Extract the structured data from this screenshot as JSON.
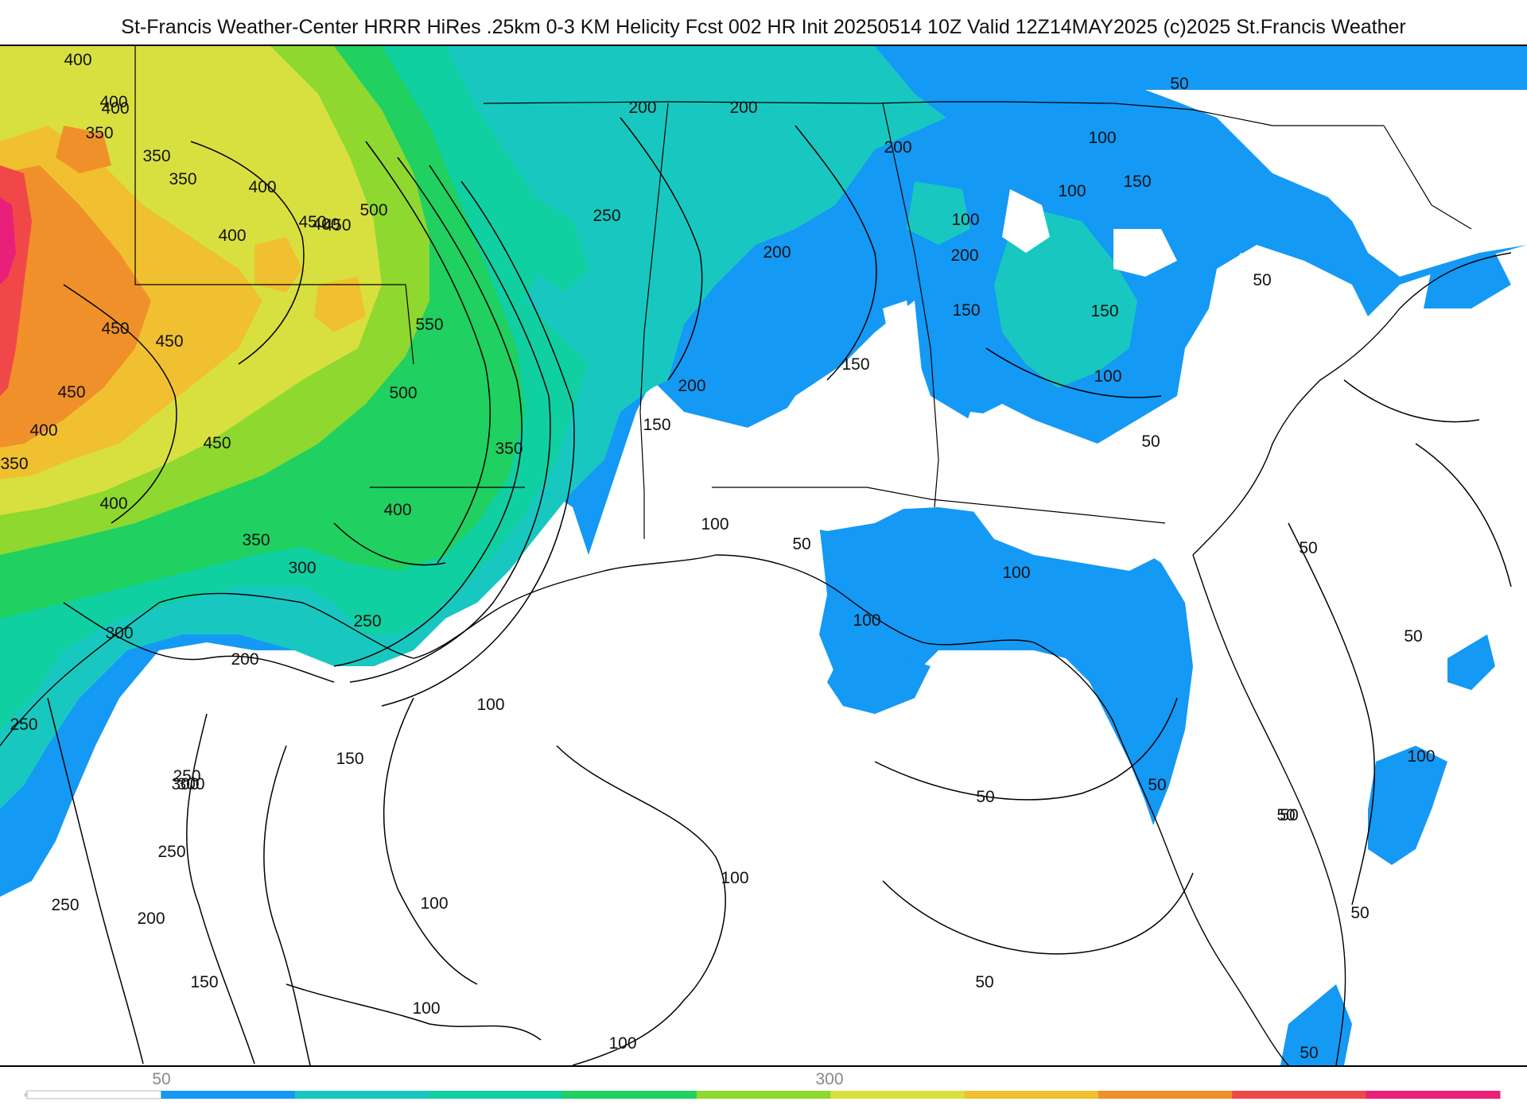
{
  "header": {
    "title": "St-Francis Weather-Center HRRR HiRes .25km 0-3 KM Helicity Fcst 002 HR Init 20250514 10Z  Valid 12Z14MAY2025    (c)2025 St.Francis Weather"
  },
  "colors": {
    "water": "#ffffff",
    "band_100": "#1499f5",
    "band_150": "#2ab8f0",
    "band_200": "#18c8c0",
    "band_250": "#10cfa0",
    "band_300": "#20d060",
    "band_350": "#30cc20",
    "band_400": "#8ed830",
    "band_450": "#d8e040",
    "band_500": "#f0c030",
    "band_550": "#f0902a",
    "band_600": "#f04848",
    "band_650": "#e8207a"
  },
  "legend": {
    "tick_labels": [
      "50",
      "300"
    ],
    "segments": [
      "#ffffff",
      "#1499f5",
      "#18c8c0",
      "#10cfa0",
      "#20d060",
      "#8ed830",
      "#d8e040",
      "#f0c030",
      "#f0902a",
      "#f04848",
      "#e8207a"
    ]
  },
  "contour_labels": [
    {
      "text": "400",
      "name": "west"
    },
    {
      "text": "400",
      "name": "west"
    },
    {
      "text": "350",
      "name": "west"
    },
    {
      "text": "400",
      "name": "west"
    },
    {
      "text": "350",
      "name": "west"
    },
    {
      "text": "350",
      "name": "west"
    },
    {
      "text": "400",
      "name": "west"
    },
    {
      "text": "450",
      "name": "west"
    },
    {
      "text": "500",
      "name": "west"
    },
    {
      "text": "400",
      "name": "west"
    },
    {
      "text": "400",
      "name": "west"
    },
    {
      "text": "550",
      "name": "west"
    },
    {
      "text": "450",
      "name": "west"
    },
    {
      "text": "450",
      "name": "west"
    },
    {
      "text": "500",
      "name": "west"
    },
    {
      "text": "450",
      "name": "west"
    },
    {
      "text": "400",
      "name": "west"
    },
    {
      "text": "450",
      "name": "west"
    },
    {
      "text": "350",
      "name": "west"
    },
    {
      "text": "450",
      "name": "west"
    },
    {
      "text": "400",
      "name": "west"
    },
    {
      "text": "400",
      "name": "west"
    },
    {
      "text": "350",
      "name": "west"
    },
    {
      "text": "300",
      "name": "west"
    },
    {
      "text": "350",
      "name": "west"
    },
    {
      "text": "250",
      "name": "west"
    },
    {
      "text": "300",
      "name": "west"
    },
    {
      "text": "250",
      "name": "west"
    },
    {
      "text": "200",
      "name": "west"
    },
    {
      "text": "250",
      "name": "west"
    },
    {
      "text": "300",
      "name": "west"
    },
    {
      "text": "200",
      "name": "central"
    },
    {
      "text": "250",
      "name": "central"
    },
    {
      "text": "200",
      "name": "central"
    },
    {
      "text": "200",
      "name": "central"
    },
    {
      "text": "200",
      "name": "central"
    },
    {
      "text": "200",
      "name": "central"
    },
    {
      "text": "150",
      "name": "central"
    },
    {
      "text": "200",
      "name": "central"
    },
    {
      "text": "150",
      "name": "central"
    },
    {
      "text": "100",
      "name": "central"
    },
    {
      "text": "50",
      "name": "central"
    },
    {
      "text": "100",
      "name": "central"
    },
    {
      "text": "100",
      "name": "central"
    },
    {
      "text": "100",
      "name": "gulf"
    },
    {
      "text": "150",
      "name": "gulf"
    },
    {
      "text": "300",
      "name": "gulf"
    },
    {
      "text": "250",
      "name": "gulf"
    },
    {
      "text": "250",
      "name": "gulf"
    },
    {
      "text": "200",
      "name": "gulf"
    },
    {
      "text": "150",
      "name": "gulf"
    },
    {
      "text": "100",
      "name": "gulf"
    },
    {
      "text": "100",
      "name": "gulf"
    },
    {
      "text": "100",
      "name": "gulf"
    },
    {
      "text": "100",
      "name": "gulf"
    },
    {
      "text": "50",
      "name": "gulf"
    },
    {
      "text": "50",
      "name": "gulf"
    },
    {
      "text": "50",
      "name": "east"
    },
    {
      "text": "100",
      "name": "east"
    },
    {
      "text": "150",
      "name": "east"
    },
    {
      "text": "100",
      "name": "east"
    },
    {
      "text": "100",
      "name": "east"
    },
    {
      "text": "150",
      "name": "east"
    },
    {
      "text": "150",
      "name": "east"
    },
    {
      "text": "100",
      "name": "east"
    },
    {
      "text": "50",
      "name": "east"
    },
    {
      "text": "50",
      "name": "east"
    },
    {
      "text": "50",
      "name": "east"
    },
    {
      "text": "50",
      "name": "east"
    },
    {
      "text": "100",
      "name": "east"
    },
    {
      "text": "50",
      "name": "east"
    },
    {
      "text": "50",
      "name": "east"
    },
    {
      "text": "50",
      "name": "east"
    },
    {
      "text": "50",
      "name": "east"
    },
    {
      "text": "50",
      "name": "east"
    }
  ]
}
